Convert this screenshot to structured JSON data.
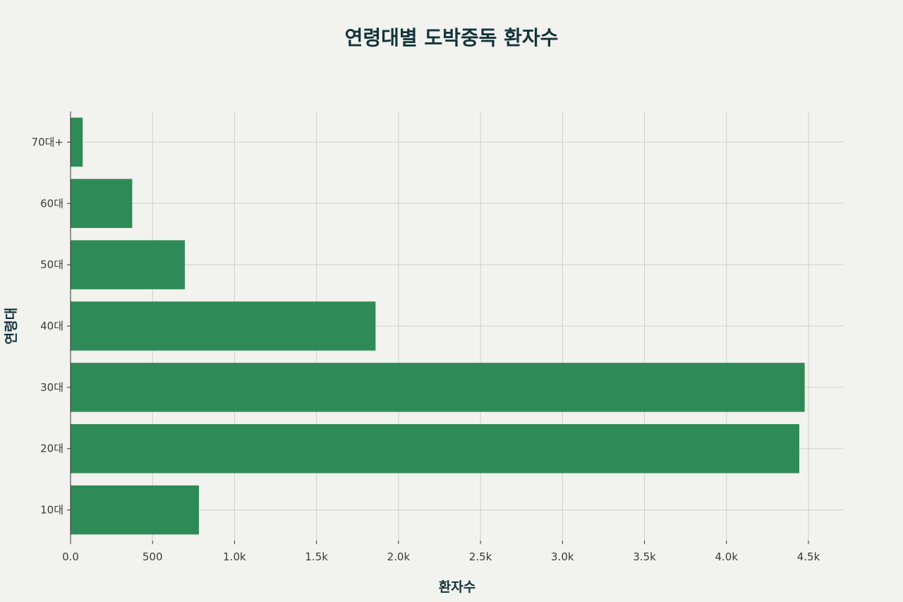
{
  "chart_data": {
    "type": "bar",
    "orientation": "horizontal",
    "title": "연령대별 도박중독 환자수",
    "xlabel": "환자수",
    "ylabel": "연령대",
    "categories": [
      "10대",
      "20대",
      "30대",
      "40대",
      "50대",
      "60대",
      "70대+"
    ],
    "values": [
      783,
      4444,
      4477,
      1860,
      697,
      376,
      74
    ],
    "xlim": [
      0,
      4700
    ],
    "xticks": [
      0,
      500,
      1000,
      1500,
      2000,
      2500,
      3000,
      3500,
      4000,
      4500
    ],
    "xtick_labels": [
      "0.0",
      "500",
      "1.0k",
      "1.5k",
      "2.0k",
      "2.5k",
      "3.0k",
      "3.5k",
      "4.0k",
      "4.5k"
    ],
    "bar_color": "#2e8b57",
    "grid": true
  }
}
